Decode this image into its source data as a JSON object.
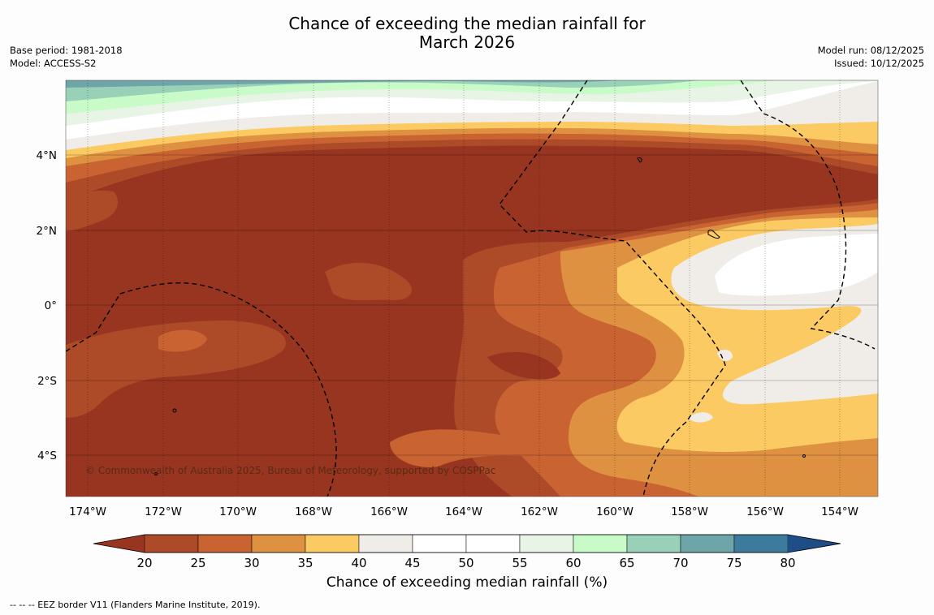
{
  "title": {
    "line1": "Chance of exceeding the median rainfall for",
    "line2": "March 2026"
  },
  "meta_left": {
    "base_period": "Base period: 1981-2018",
    "model": "Model: ACCESS-S2"
  },
  "meta_right": {
    "model_run": "Model run: 08/12/2025",
    "issued": "Issued: 10/12/2025"
  },
  "map": {
    "lon_ticks": [
      "174°W",
      "172°W",
      "170°W",
      "168°W",
      "166°W",
      "164°W",
      "162°W",
      "160°W",
      "158°W",
      "156°W",
      "154°W"
    ],
    "lat_ticks": [
      "4°N",
      "2°N",
      "0°",
      "2°S",
      "4°S"
    ],
    "copyright": "© Commonwealth of Australia 2025, Bureau of Meteorology, supported by COSPPac"
  },
  "colorbar": {
    "label": "Chance of exceeding median rainfall (%)",
    "ticks": [
      "20",
      "25",
      "30",
      "35",
      "40",
      "45",
      "50",
      "55",
      "60",
      "65",
      "70",
      "75",
      "80"
    ],
    "colors": [
      "#973520",
      "#ad4a28",
      "#c96332",
      "#df9142",
      "#fbca63",
      "#f0ede8",
      "#ffffff",
      "#ffffff",
      "#e8f4e6",
      "#c9fbc9",
      "#99d0b8",
      "#6ea5a8",
      "#3c7b9b",
      "#1e4d87"
    ]
  },
  "footnote": "--  --  -- EEZ border V11 (Flanders Marine Institute, 2019)."
}
